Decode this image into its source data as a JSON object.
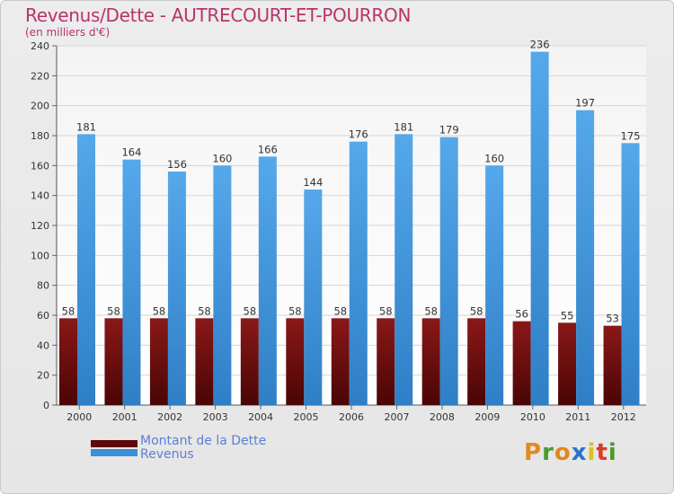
{
  "chart_data": {
    "type": "bar",
    "title": "Revenus/Dette - AUTRECOURT-ET-POURRON",
    "subtitle": "(en milliers d'€)",
    "categories": [
      "2000",
      "2001",
      "2002",
      "2003",
      "2004",
      "2005",
      "2006",
      "2007",
      "2008",
      "2009",
      "2010",
      "2011",
      "2012"
    ],
    "series": [
      {
        "name": "Montant de la Dette",
        "values": [
          58,
          58,
          58,
          58,
          58,
          58,
          58,
          58,
          58,
          58,
          56,
          55,
          53
        ],
        "color": "#7a0f0f"
      },
      {
        "name": "Revenus",
        "values": [
          181,
          164,
          156,
          160,
          166,
          144,
          176,
          181,
          179,
          160,
          236,
          197,
          175
        ],
        "color": "#3b8fd9"
      }
    ],
    "ylim": [
      0,
      240
    ],
    "yticks": [
      0,
      20,
      40,
      60,
      80,
      100,
      120,
      140,
      160,
      180,
      200,
      220,
      240
    ],
    "grid": true,
    "legend": "bottom-left"
  },
  "logo": {
    "letters": [
      "P",
      "r",
      "o",
      "x",
      "i",
      "t",
      "i"
    ],
    "colors": [
      "#e08a1c",
      "#4a9a2a",
      "#e08a1c",
      "#2a73c8",
      "#d9c21c",
      "#d93c2a",
      "#4a9a2a"
    ]
  }
}
